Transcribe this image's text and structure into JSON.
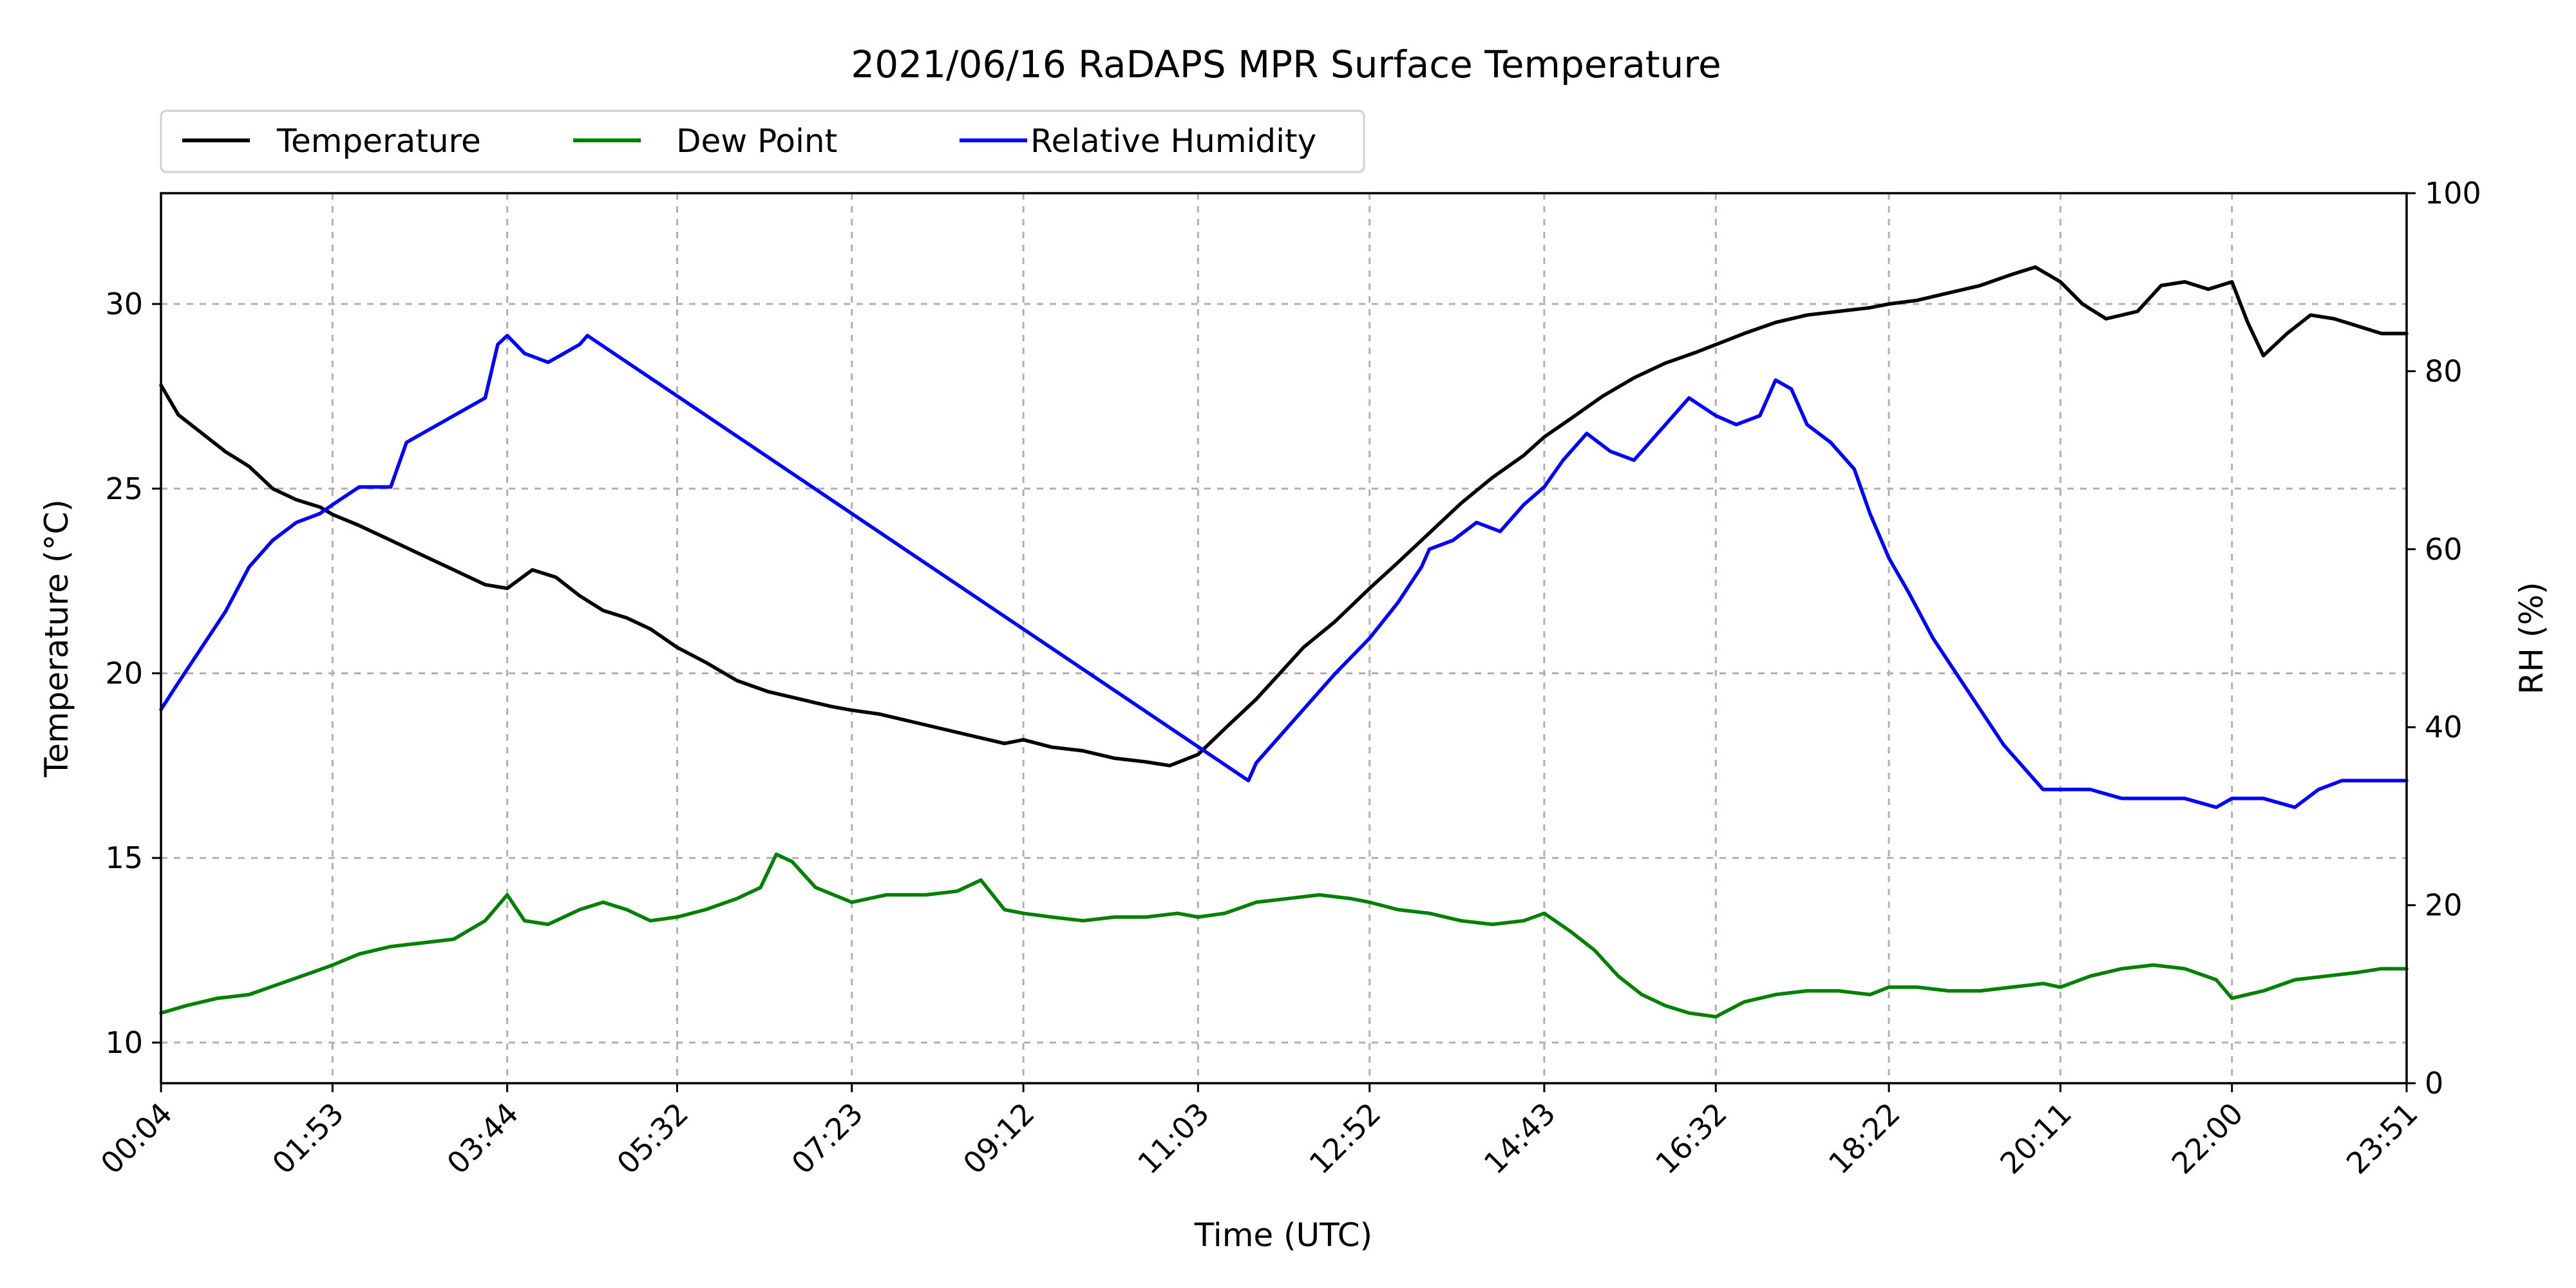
{
  "chart_data": {
    "type": "line",
    "title": "2021/06/16 RaDAPS MPR Surface Temperature",
    "xlabel": "Time (UTC)",
    "ylabel": "Temperature ($^\\circ$C)",
    "ylabel_display": "Temperature (°C)",
    "y2label": "RH (%)",
    "x_ticks": [
      "00:04",
      "01:53",
      "03:44",
      "05:32",
      "07:23",
      "09:12",
      "11:03",
      "12:52",
      "14:43",
      "16:32",
      "18:22",
      "20:11",
      "22:00",
      "23:51"
    ],
    "x_range": [
      "00:04",
      "23:51"
    ],
    "ylim": [
      8.9,
      33
    ],
    "y_ticks": [
      10,
      15,
      20,
      25,
      30
    ],
    "y2lim": [
      0,
      100
    ],
    "y2_ticks": [
      0,
      20,
      40,
      60,
      80,
      100
    ],
    "grid": true,
    "legend_position": "top-left, above plot",
    "series": [
      {
        "name": "Temperature",
        "axis": "left",
        "color": "#000000",
        "x": [
          "00:04",
          "00:15",
          "00:30",
          "00:45",
          "01:00",
          "01:15",
          "01:30",
          "01:45",
          "01:53",
          "02:10",
          "02:30",
          "02:50",
          "03:10",
          "03:30",
          "03:44",
          "04:00",
          "04:15",
          "04:30",
          "04:45",
          "05:00",
          "05:15",
          "05:32",
          "05:50",
          "06:10",
          "06:30",
          "06:50",
          "07:10",
          "07:23",
          "07:40",
          "08:00",
          "08:20",
          "08:40",
          "09:00",
          "09:12",
          "09:30",
          "09:50",
          "10:10",
          "10:30",
          "10:45",
          "11:03",
          "11:20",
          "11:40",
          "11:55",
          "12:10",
          "12:30",
          "12:52",
          "13:10",
          "13:30",
          "13:50",
          "14:10",
          "14:30",
          "14:43",
          "15:00",
          "15:20",
          "15:40",
          "16:00",
          "16:20",
          "16:32",
          "16:50",
          "17:10",
          "17:30",
          "17:50",
          "18:10",
          "18:22",
          "18:40",
          "19:00",
          "19:20",
          "19:40",
          "19:55",
          "20:11",
          "20:25",
          "20:40",
          "21:00",
          "21:15",
          "21:30",
          "21:45",
          "22:00",
          "22:10",
          "22:20",
          "22:35",
          "22:50",
          "23:05",
          "23:20",
          "23:35",
          "23:51"
        ],
        "y": [
          27.8,
          27.0,
          26.5,
          26.0,
          25.6,
          25.0,
          24.7,
          24.5,
          24.3,
          24.0,
          23.6,
          23.2,
          22.8,
          22.4,
          22.3,
          22.8,
          22.6,
          22.1,
          21.7,
          21.5,
          21.2,
          20.7,
          20.3,
          19.8,
          19.5,
          19.3,
          19.1,
          19.0,
          18.9,
          18.7,
          18.5,
          18.3,
          18.1,
          18.2,
          18.0,
          17.9,
          17.7,
          17.6,
          17.5,
          17.8,
          18.5,
          19.3,
          20.0,
          20.7,
          21.4,
          22.3,
          23.0,
          23.8,
          24.6,
          25.3,
          25.9,
          26.4,
          26.9,
          27.5,
          28.0,
          28.4,
          28.7,
          28.9,
          29.2,
          29.5,
          29.7,
          29.8,
          29.9,
          30.0,
          30.1,
          30.3,
          30.5,
          30.8,
          31.0,
          30.6,
          30.0,
          29.6,
          29.8,
          30.5,
          30.6,
          30.4,
          30.6,
          29.5,
          28.6,
          29.2,
          29.7,
          29.6,
          29.4,
          29.2,
          29.2
        ]
      },
      {
        "name": "Dew Point",
        "axis": "left",
        "color": "#008000",
        "x": [
          "00:04",
          "00:20",
          "00:40",
          "01:00",
          "01:20",
          "01:40",
          "01:53",
          "02:10",
          "02:30",
          "02:50",
          "03:10",
          "03:30",
          "03:44",
          "03:55",
          "04:10",
          "04:30",
          "04:45",
          "05:00",
          "05:15",
          "05:32",
          "05:50",
          "06:10",
          "06:25",
          "06:35",
          "06:45",
          "07:00",
          "07:23",
          "07:45",
          "08:10",
          "08:30",
          "08:45",
          "09:00",
          "09:12",
          "09:30",
          "09:50",
          "10:10",
          "10:30",
          "10:50",
          "11:03",
          "11:20",
          "11:40",
          "12:00",
          "12:20",
          "12:40",
          "12:52",
          "13:10",
          "13:30",
          "13:50",
          "14:10",
          "14:30",
          "14:43",
          "15:00",
          "15:15",
          "15:30",
          "15:45",
          "16:00",
          "16:15",
          "16:32",
          "16:50",
          "17:10",
          "17:30",
          "17:50",
          "18:10",
          "18:22",
          "18:40",
          "19:00",
          "19:20",
          "19:40",
          "20:00",
          "20:11",
          "20:30",
          "20:50",
          "21:10",
          "21:30",
          "21:50",
          "22:00",
          "22:20",
          "22:40",
          "23:00",
          "23:20",
          "23:35",
          "23:51"
        ],
        "y": [
          10.8,
          11.0,
          11.2,
          11.3,
          11.6,
          11.9,
          12.1,
          12.4,
          12.6,
          12.7,
          12.8,
          13.3,
          14.0,
          13.3,
          13.2,
          13.6,
          13.8,
          13.6,
          13.3,
          13.4,
          13.6,
          13.9,
          14.2,
          15.1,
          14.9,
          14.2,
          13.8,
          14.0,
          14.0,
          14.1,
          14.4,
          13.6,
          13.5,
          13.4,
          13.3,
          13.4,
          13.4,
          13.5,
          13.4,
          13.5,
          13.8,
          13.9,
          14.0,
          13.9,
          13.8,
          13.6,
          13.5,
          13.3,
          13.2,
          13.3,
          13.5,
          13.0,
          12.5,
          11.8,
          11.3,
          11.0,
          10.8,
          10.7,
          11.1,
          11.3,
          11.4,
          11.4,
          11.3,
          11.5,
          11.5,
          11.4,
          11.4,
          11.5,
          11.6,
          11.5,
          11.8,
          12.0,
          12.1,
          12.0,
          11.7,
          11.2,
          11.4,
          11.7,
          11.8,
          11.9,
          12.0,
          12.0
        ]
      },
      {
        "name": "Relative Humidity",
        "axis": "right",
        "color": "#0000ff",
        "x": [
          "00:04",
          "00:15",
          "00:30",
          "00:45",
          "01:00",
          "01:15",
          "01:30",
          "01:45",
          "01:53",
          "02:10",
          "02:30",
          "02:40",
          "02:50",
          "03:10",
          "03:30",
          "03:38",
          "03:44",
          "03:55",
          "04:10",
          "04:20",
          "04:30",
          "04:35",
          "11:35",
          "11:40",
          "11:55",
          "12:10",
          "12:30",
          "12:52",
          "13:10",
          "13:25",
          "13:30",
          "13:45",
          "14:00",
          "14:15",
          "14:30",
          "14:43",
          "14:55",
          "15:10",
          "15:25",
          "15:40",
          "16:00",
          "16:15",
          "16:32",
          "16:45",
          "17:00",
          "17:10",
          "17:20",
          "17:30",
          "17:45",
          "18:00",
          "18:10",
          "18:22",
          "18:35",
          "18:50",
          "19:05",
          "19:20",
          "19:35",
          "19:50",
          "20:00",
          "20:11",
          "20:30",
          "20:50",
          "21:10",
          "21:30",
          "21:50",
          "22:00",
          "22:20",
          "22:40",
          "22:55",
          "23:10",
          "23:25",
          "23:40",
          "23:51"
        ],
        "y": [
          42,
          45,
          49,
          53,
          58,
          61,
          63,
          64,
          65,
          67,
          67,
          72,
          73,
          75,
          77,
          83,
          84,
          82,
          81,
          82,
          83,
          84,
          34,
          36,
          39,
          42,
          46,
          50,
          54,
          58,
          60,
          61,
          63,
          62,
          65,
          67,
          70,
          73,
          71,
          70,
          74,
          77,
          75,
          74,
          75,
          79,
          78,
          74,
          72,
          69,
          64,
          59,
          55,
          50,
          46,
          42,
          38,
          35,
          33,
          33,
          33,
          32,
          32,
          32,
          31,
          32,
          32,
          31,
          33,
          34,
          34,
          34,
          34
        ]
      }
    ]
  }
}
